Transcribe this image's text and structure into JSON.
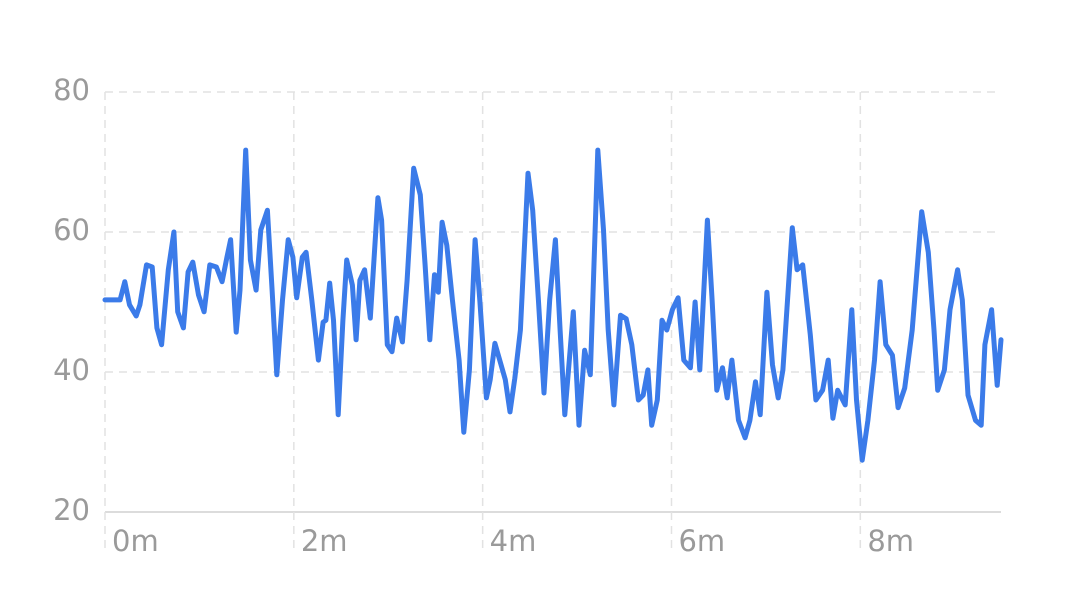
{
  "chart_data": {
    "type": "line",
    "x": [
      0,
      0.16,
      0.21,
      0.26,
      0.33,
      0.37,
      0.44,
      0.5,
      0.55,
      0.6,
      0.67,
      0.73,
      0.77,
      0.83,
      0.88,
      0.93,
      0.99,
      1.05,
      1.11,
      1.18,
      1.24,
      1.29,
      1.33,
      1.39,
      1.43,
      1.49,
      1.54,
      1.6,
      1.65,
      1.72,
      1.77,
      1.82,
      1.88,
      1.94,
      1.99,
      2.03,
      2.09,
      2.13,
      2.19,
      2.26,
      2.31,
      2.34,
      2.38,
      2.42,
      2.47,
      2.52,
      2.56,
      2.62,
      2.66,
      2.7,
      2.75,
      2.81,
      2.89,
      2.93,
      2.99,
      3.04,
      3.09,
      3.15,
      3.2,
      3.27,
      3.34,
      3.39,
      3.44,
      3.49,
      3.53,
      3.57,
      3.62,
      3.68,
      3.75,
      3.8,
      3.86,
      3.92,
      3.97,
      4.04,
      4.08,
      4.13,
      4.18,
      4.24,
      4.29,
      4.34,
      4.4,
      4.48,
      4.53,
      4.59,
      4.65,
      4.71,
      4.77,
      4.82,
      4.87,
      4.96,
      5.02,
      5.08,
      5.14,
      5.22,
      5.28,
      5.33,
      5.39,
      5.46,
      5.52,
      5.58,
      5.65,
      5.7,
      5.75,
      5.79,
      5.85,
      5.9,
      5.95,
      6.01,
      6.07,
      6.13,
      6.2,
      6.25,
      6.3,
      6.38,
      6.43,
      6.48,
      6.54,
      6.59,
      6.64,
      6.71,
      6.78,
      6.83,
      6.89,
      6.94,
      7.01,
      7.07,
      7.13,
      7.18,
      7.28,
      7.33,
      7.39,
      7.47,
      7.53,
      7.6,
      7.66,
      7.71,
      7.76,
      7.84,
      7.91,
      7.96,
      8.02,
      8.08,
      8.15,
      8.21,
      8.27,
      8.34,
      8.4,
      8.47,
      8.55,
      8.65,
      8.72,
      8.78,
      8.82,
      8.89,
      8.95,
      9.03,
      9.08,
      9.14,
      9.22,
      9.28,
      9.32,
      9.39,
      9.45,
      9.49
    ],
    "series": [
      {
        "color": "#3b7be9",
        "values": [
          50.3,
          50.3,
          52.9,
          49.6,
          48,
          49.6,
          55.3,
          55,
          46.3,
          43.9,
          54.6,
          60,
          48.6,
          46.3,
          54.3,
          55.7,
          51,
          48.6,
          55.3,
          55,
          52.9,
          56.3,
          58.9,
          45.7,
          51.7,
          71.7,
          56,
          51.7,
          60.3,
          63.1,
          51.7,
          39.6,
          50.3,
          58.9,
          56.4,
          50.6,
          56.4,
          57.1,
          50.3,
          41.7,
          47.1,
          47.4,
          52.7,
          47.4,
          33.9,
          47.4,
          56,
          52.4,
          44.6,
          53.1,
          54.6,
          47.7,
          64.9,
          61.7,
          43.9,
          42.9,
          47.7,
          44.3,
          53.1,
          69.1,
          65.3,
          55.3,
          44.6,
          53.9,
          51.4,
          61.4,
          58.1,
          50.3,
          41.7,
          31.4,
          40.3,
          58.9,
          50.3,
          36.3,
          38.9,
          44.1,
          41.7,
          38.9,
          34.3,
          39.1,
          46,
          68.4,
          63.1,
          50.3,
          37,
          50.3,
          58.9,
          46,
          33.9,
          48.6,
          32.4,
          43.1,
          39.6,
          71.7,
          60.3,
          46,
          35.3,
          48.1,
          47.6,
          43.9,
          36,
          36.7,
          40.3,
          32.4,
          36,
          47.4,
          46,
          48.9,
          50.6,
          41.7,
          40.6,
          50,
          40.3,
          61.7,
          50.3,
          37.4,
          40.6,
          36.3,
          41.7,
          33.1,
          30.6,
          33.1,
          38.6,
          33.9,
          51.4,
          41,
          36.3,
          40.3,
          60.6,
          54.6,
          55.3,
          45.3,
          36,
          37.4,
          41.7,
          33.4,
          37.4,
          35.3,
          48.9,
          36,
          27.4,
          33.1,
          41.7,
          52.9,
          43.9,
          42.4,
          34.9,
          37.7,
          46,
          62.9,
          57.1,
          46,
          37.4,
          40.3,
          48.9,
          54.6,
          50.3,
          36.7,
          33.1,
          32.4,
          43.9,
          48.9,
          38.1,
          44.6
        ]
      }
    ],
    "xlim": [
      0,
      9.49
    ],
    "xticks": [
      {
        "value": 0,
        "label": "0m"
      },
      {
        "value": 2,
        "label": "2m"
      },
      {
        "value": 4,
        "label": "4m"
      },
      {
        "value": 6,
        "label": "6m"
      },
      {
        "value": 8,
        "label": "8m"
      }
    ],
    "ylim": [
      20,
      80
    ],
    "yticks": [
      20,
      40,
      60,
      80
    ],
    "grid": true
  }
}
